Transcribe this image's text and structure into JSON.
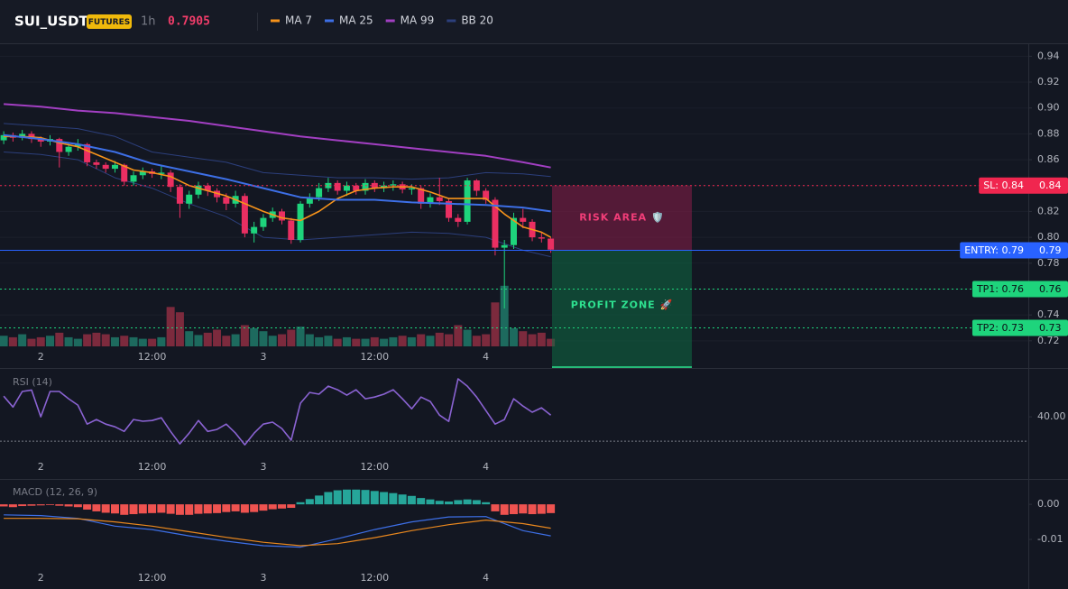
{
  "header": {
    "symbol": "SUI_USDT",
    "badge": "FUTURES",
    "interval": "1h",
    "price": 0.7905,
    "price_color": "#f23d6a"
  },
  "chart_data": [
    {
      "type": "candlestick",
      "xlim": [
        -0.4,
        110.5
      ],
      "xticks": [
        {
          "value": 4,
          "label": "2"
        },
        {
          "value": 16,
          "label": "12:00"
        },
        {
          "value": 28,
          "label": "3"
        },
        {
          "value": 40,
          "label": "12:00"
        },
        {
          "value": 52,
          "label": "4"
        }
      ],
      "ylim": [
        0.715,
        0.95
      ],
      "yticks": [
        0.72,
        0.74,
        0.76,
        0.78,
        {
          "value": 0.8,
          "label": "0.80"
        },
        0.82,
        0.84,
        0.86,
        0.88,
        {
          "value": 0.9,
          "label": "0.90"
        },
        0.92,
        0.94
      ],
      "grid": true,
      "up_color": "#1ed47c",
      "down_color": "#ea2f62",
      "volume_up_color": "#1d6a5e",
      "volume_down_color": "#7c2a3d",
      "open": [
        0.875,
        0.879,
        0.877,
        0.88,
        0.876,
        0.874,
        0.876,
        0.866,
        0.87,
        0.872,
        0.858,
        0.856,
        0.853,
        0.856,
        0.843,
        0.848,
        0.851,
        0.849,
        0.85,
        0.839,
        0.826,
        0.833,
        0.84,
        0.836,
        0.831,
        0.826,
        0.832,
        0.803,
        0.808,
        0.815,
        0.82,
        0.813,
        0.798,
        0.826,
        0.831,
        0.838,
        0.842,
        0.836,
        0.84,
        0.836,
        0.842,
        0.838,
        0.84,
        0.841,
        0.837,
        0.838,
        0.826,
        0.831,
        0.828,
        0.815,
        0.812,
        0.844,
        0.836,
        0.829,
        0.792,
        0.794,
        0.815,
        0.812,
        0.8,
        0.799
      ],
      "high": [
        0.882,
        0.881,
        0.883,
        0.882,
        0.878,
        0.879,
        0.877,
        0.873,
        0.876,
        0.873,
        0.86,
        0.858,
        0.859,
        0.857,
        0.851,
        0.854,
        0.853,
        0.856,
        0.852,
        0.841,
        0.836,
        0.843,
        0.842,
        0.838,
        0.834,
        0.836,
        0.834,
        0.812,
        0.818,
        0.823,
        0.822,
        0.815,
        0.828,
        0.834,
        0.842,
        0.846,
        0.844,
        0.843,
        0.842,
        0.845,
        0.844,
        0.843,
        0.844,
        0.843,
        0.841,
        0.84,
        0.834,
        0.846,
        0.83,
        0.818,
        0.846,
        0.845,
        0.838,
        0.831,
        0.798,
        0.819,
        0.822,
        0.814,
        0.804,
        0.8
      ],
      "low": [
        0.872,
        0.874,
        0.875,
        0.873,
        0.87,
        0.871,
        0.854,
        0.863,
        0.867,
        0.855,
        0.853,
        0.85,
        0.85,
        0.84,
        0.84,
        0.845,
        0.846,
        0.845,
        0.835,
        0.815,
        0.822,
        0.83,
        0.832,
        0.827,
        0.821,
        0.823,
        0.8,
        0.796,
        0.805,
        0.812,
        0.81,
        0.795,
        0.796,
        0.823,
        0.828,
        0.835,
        0.833,
        0.832,
        0.833,
        0.833,
        0.835,
        0.835,
        0.836,
        0.834,
        0.833,
        0.822,
        0.823,
        0.825,
        0.812,
        0.808,
        0.81,
        0.832,
        0.826,
        0.786,
        0.745,
        0.791,
        0.807,
        0.797,
        0.796,
        0.788
      ],
      "close": [
        0.879,
        0.877,
        0.88,
        0.876,
        0.874,
        0.876,
        0.866,
        0.87,
        0.872,
        0.858,
        0.856,
        0.853,
        0.856,
        0.843,
        0.848,
        0.851,
        0.849,
        0.85,
        0.839,
        0.826,
        0.833,
        0.84,
        0.836,
        0.831,
        0.826,
        0.832,
        0.803,
        0.808,
        0.815,
        0.82,
        0.813,
        0.798,
        0.826,
        0.831,
        0.838,
        0.842,
        0.836,
        0.84,
        0.836,
        0.842,
        0.838,
        0.84,
        0.841,
        0.837,
        0.838,
        0.826,
        0.831,
        0.828,
        0.815,
        0.812,
        0.844,
        0.836,
        0.829,
        0.792,
        0.794,
        0.815,
        0.812,
        0.8,
        0.799,
        0.7905
      ],
      "volume": [
        14,
        12,
        16,
        10,
        12,
        14,
        18,
        12,
        10,
        16,
        18,
        16,
        12,
        14,
        12,
        10,
        10,
        12,
        52,
        45,
        20,
        15,
        18,
        22,
        14,
        16,
        28,
        24,
        20,
        14,
        16,
        22,
        26,
        16,
        12,
        14,
        10,
        12,
        10,
        10,
        12,
        10,
        12,
        14,
        12,
        16,
        14,
        18,
        16,
        28,
        22,
        14,
        16,
        58,
        80,
        24,
        20,
        16,
        18,
        10
      ],
      "vlim": [
        0,
        100
      ],
      "overlays": [
        {
          "name": "MA 7",
          "color": "#f7931a",
          "x": [
            0,
            2,
            4,
            6,
            8,
            10,
            12,
            14,
            16,
            18,
            20,
            22,
            24,
            26,
            28,
            30,
            32,
            34,
            36,
            38,
            40,
            42,
            44,
            46,
            48,
            50,
            52,
            54,
            56,
            58,
            59
          ],
          "values": [
            0.878,
            0.878,
            0.877,
            0.873,
            0.87,
            0.864,
            0.858,
            0.852,
            0.85,
            0.847,
            0.84,
            0.836,
            0.832,
            0.826,
            0.82,
            0.815,
            0.813,
            0.82,
            0.83,
            0.836,
            0.838,
            0.839,
            0.839,
            0.835,
            0.83,
            0.83,
            0.83,
            0.818,
            0.808,
            0.804,
            0.8
          ]
        },
        {
          "name": "MA 25",
          "color": "#3d6fe6",
          "x": [
            0,
            4,
            8,
            12,
            16,
            20,
            24,
            28,
            32,
            36,
            40,
            44,
            48,
            52,
            56,
            59
          ],
          "values": [
            0.879,
            0.876,
            0.872,
            0.866,
            0.857,
            0.851,
            0.845,
            0.838,
            0.831,
            0.829,
            0.829,
            0.827,
            0.826,
            0.825,
            0.823,
            0.82
          ]
        },
        {
          "name": "MA 99",
          "color": "#a23fc2",
          "x": [
            0,
            4,
            8,
            12,
            16,
            20,
            24,
            28,
            32,
            36,
            40,
            44,
            48,
            52,
            56,
            59
          ],
          "values": [
            0.903,
            0.901,
            0.898,
            0.896,
            0.893,
            0.89,
            0.886,
            0.882,
            0.878,
            0.875,
            0.872,
            0.869,
            0.866,
            0.863,
            0.858,
            0.854
          ]
        },
        {
          "name": "BB 20",
          "color": "#2c3f7c",
          "x": [
            0,
            4,
            8,
            12,
            16,
            20,
            24,
            28,
            32,
            36,
            40,
            44,
            48,
            52,
            56,
            59
          ],
          "upper": [
            0.888,
            0.886,
            0.884,
            0.878,
            0.866,
            0.862,
            0.858,
            0.85,
            0.848,
            0.846,
            0.846,
            0.845,
            0.846,
            0.85,
            0.849,
            0.847
          ],
          "lower": [
            0.866,
            0.864,
            0.86,
            0.846,
            0.838,
            0.826,
            0.816,
            0.8,
            0.798,
            0.8,
            0.802,
            0.804,
            0.803,
            0.8,
            0.79,
            0.785
          ]
        }
      ],
      "levels": [
        {
          "label": "SL: 0.84",
          "value": 0.84,
          "color": "#f0264f",
          "style": "dashed"
        },
        {
          "label": "ENTRY: 0.79",
          "value": 0.79,
          "color": "#2962ff",
          "style": "solid"
        },
        {
          "label": "TP1: 0.76",
          "value": 0.76,
          "color": "#1ed47c",
          "style": "dashed"
        },
        {
          "label": "TP2: 0.73",
          "value": 0.73,
          "color": "#1ed47c",
          "style": "dashed"
        }
      ],
      "zones": [
        {
          "label": "RISK AREA 🛡️",
          "color": "#8a1d48",
          "text_color": "#f23d78"
        },
        {
          "label": "PROFIT ZONE 🚀",
          "color": "#0f6b43",
          "text_color": "#2ee08f"
        }
      ]
    },
    {
      "type": "line",
      "title": "RSI (14)",
      "color": "#8a63d2",
      "ylim": [
        16.7,
        59.3
      ],
      "yticks": [
        {
          "value": 40,
          "label": "40.00"
        }
      ],
      "levels": [
        30
      ],
      "values": [
        48.5,
        44,
        50.4,
        51,
        40,
        50.4,
        50.4,
        47.4,
        44.8,
        37,
        38.9,
        37,
        35.9,
        34,
        38.9,
        38.2,
        38.5,
        39.6,
        34,
        28.9,
        33.3,
        38.5,
        34,
        34.8,
        37,
        33.3,
        28.5,
        33.3,
        37,
        37.8,
        35.2,
        30.4,
        45.6,
        50,
        49.3,
        52.6,
        51.1,
        48.9,
        51.1,
        47.4,
        48.1,
        49.3,
        51.1,
        47.4,
        43.3,
        48.1,
        46.3,
        40.7,
        38.1,
        55.6,
        52.6,
        48.1,
        42.6,
        37,
        38.9,
        47.4,
        44.4,
        41.9,
        43.7,
        40.7
      ]
    },
    {
      "type": "macd",
      "title": "MACD (12, 26, 9)",
      "ylim": [
        -0.0177,
        0.0062
      ],
      "yticks": [
        {
          "value": 0,
          "label": "0.00"
        },
        -0.01
      ],
      "hist_up_color": "#26a69a",
      "hist_down_color": "#ef5350",
      "histogram": [
        -0.0006,
        -0.0008,
        -0.0005,
        -0.0004,
        -0.0003,
        -0.0002,
        -0.0004,
        -0.0006,
        -0.0008,
        -0.0015,
        -0.002,
        -0.0024,
        -0.0026,
        -0.003,
        -0.0028,
        -0.0026,
        -0.0025,
        -0.0024,
        -0.0027,
        -0.003,
        -0.003,
        -0.0027,
        -0.0026,
        -0.0025,
        -0.0022,
        -0.002,
        -0.0024,
        -0.0022,
        -0.0018,
        -0.0014,
        -0.0012,
        -0.001,
        0.0006,
        0.0015,
        0.0025,
        0.0035,
        0.004,
        0.0042,
        0.0042,
        0.0041,
        0.0038,
        0.0035,
        0.0032,
        0.0028,
        0.0024,
        0.0018,
        0.0014,
        0.001,
        0.0008,
        0.0012,
        0.0014,
        0.0012,
        0.0006,
        -0.002,
        -0.003,
        -0.0028,
        -0.0026,
        -0.0028,
        -0.0027,
        -0.0025
      ],
      "series": [
        {
          "color": "#3d6fe6",
          "x": [
            0,
            4,
            8,
            12,
            16,
            20,
            24,
            28,
            32,
            36,
            40,
            44,
            48,
            52,
            56,
            59
          ],
          "values": [
            -0.003,
            -0.0032,
            -0.004,
            -0.0062,
            -0.0072,
            -0.009,
            -0.0105,
            -0.0118,
            -0.0122,
            -0.0098,
            -0.0072,
            -0.005,
            -0.0036,
            -0.0035,
            -0.0075,
            -0.009
          ]
        },
        {
          "color": "#e8871e",
          "x": [
            0,
            4,
            8,
            12,
            16,
            20,
            24,
            28,
            32,
            36,
            40,
            44,
            48,
            52,
            56,
            59
          ],
          "values": [
            -0.004,
            -0.004,
            -0.0041,
            -0.005,
            -0.0062,
            -0.0078,
            -0.0094,
            -0.0108,
            -0.0118,
            -0.0112,
            -0.0095,
            -0.0075,
            -0.0058,
            -0.0045,
            -0.0055,
            -0.0068
          ]
        }
      ]
    }
  ]
}
